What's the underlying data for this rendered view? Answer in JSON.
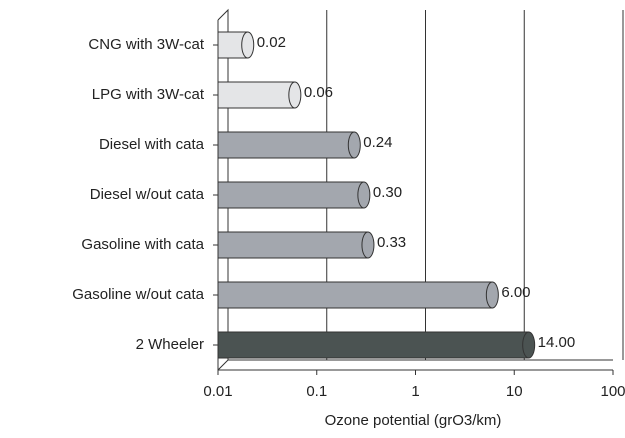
{
  "chart_data": {
    "type": "bar",
    "orientation": "horizontal",
    "categories": [
      "CNG with 3W-cat",
      "LPG with 3W-cat",
      "Diesel with cata",
      "Diesel w/out cata",
      "Gasoline with cata",
      "Gasoline w/out cata",
      "2  Wheeler"
    ],
    "values": [
      0.02,
      0.06,
      0.24,
      0.3,
      0.33,
      6.0,
      14.0
    ],
    "value_labels": [
      "0.02",
      "0.06",
      "0.24",
      "0.30",
      "0.33",
      "6.00",
      "14.00"
    ],
    "colors": [
      "#e4e5e7",
      "#e4e5e7",
      "#a3a7ae",
      "#a3a7ae",
      "#a3a7ae",
      "#a3a7ae",
      "#4b5352"
    ],
    "xlabel": "Ozone potential (grO3/km)",
    "xscale": "log",
    "xlim": [
      0.01,
      100
    ],
    "xticks": [
      0.01,
      0.1,
      1,
      10,
      100
    ],
    "grid": true
  }
}
